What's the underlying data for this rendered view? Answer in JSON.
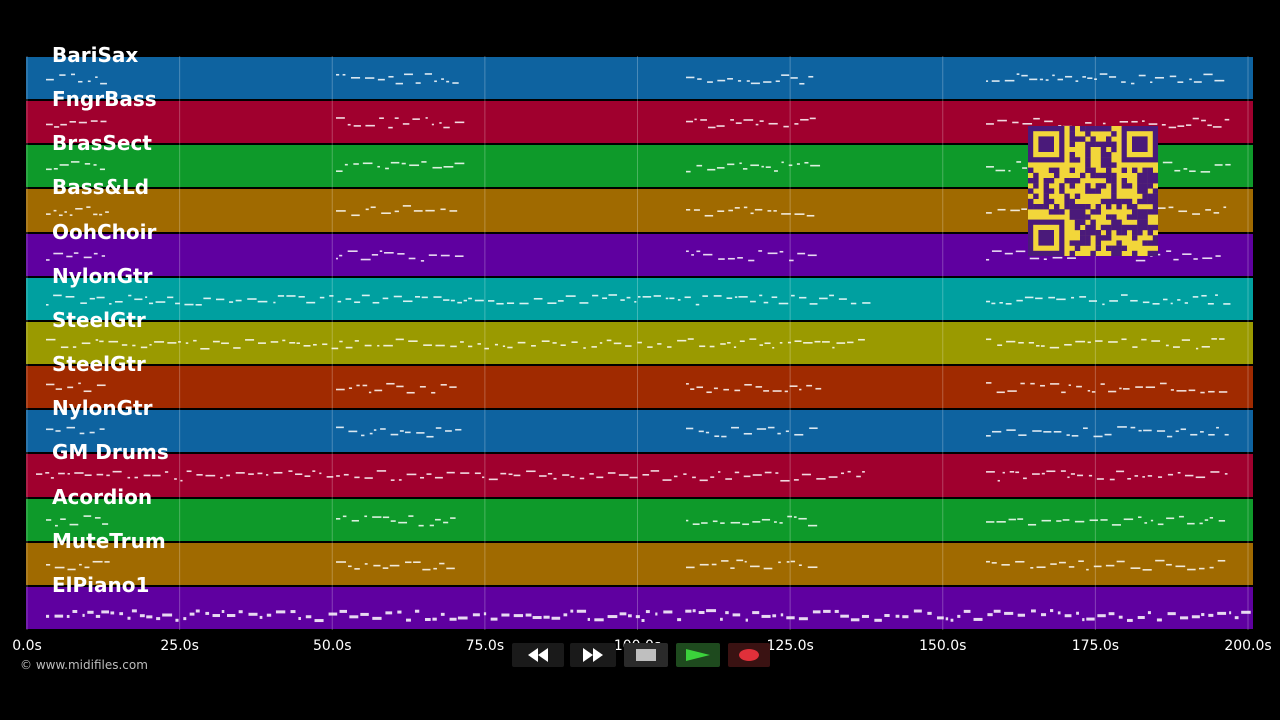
{
  "colors": {
    "background": "#000000",
    "track_colors": [
      "#0e63a0",
      "#a0002e",
      "#0e9a2a",
      "#a06a00",
      "#5f00a0",
      "#00a0a0",
      "#9a9a00",
      "#a02a00"
    ],
    "qr": "#f2d63a",
    "qr_dark": "#4a1a7a"
  },
  "tracks": [
    {
      "label": "BariSax",
      "color": "#0e63a0"
    },
    {
      "label": "FngrBass",
      "color": "#a0002e"
    },
    {
      "label": "BrasSect",
      "color": "#0e9a2a"
    },
    {
      "label": "Bass&Ld",
      "color": "#a06a00"
    },
    {
      "label": "OohChoir",
      "color": "#5f00a0"
    },
    {
      "label": "NylonGtr",
      "color": "#00a0a0"
    },
    {
      "label": "SteelGtr",
      "color": "#9a9a00"
    },
    {
      "label": "SteelGtr",
      "color": "#a02a00"
    },
    {
      "label": "NylonGtr",
      "color": "#0e63a0"
    },
    {
      "label": "GM Drums",
      "color": "#a0002e"
    },
    {
      "label": "Acordion",
      "color": "#0e9a2a"
    },
    {
      "label": "MuteTrum",
      "color": "#a06a00"
    },
    {
      "label": "ElPiano1",
      "color": "#5f00a0"
    }
  ],
  "timeline": {
    "ticks": [
      "0.0s",
      "25.0s",
      "50.0s",
      "75.0s",
      "100.0s",
      "125.0s",
      "150.0s",
      "175.0s",
      "200.0s"
    ]
  },
  "footer": {
    "copyright": "© www.midifiles.com"
  },
  "transport": {
    "rewind_icon": "double-left-arrow",
    "forward_icon": "double-right-arrow",
    "stop_icon": "square",
    "play_icon": "triangle-right",
    "record_icon": "circle",
    "play_color": "#3bd13b",
    "record_color": "#e0303a"
  }
}
